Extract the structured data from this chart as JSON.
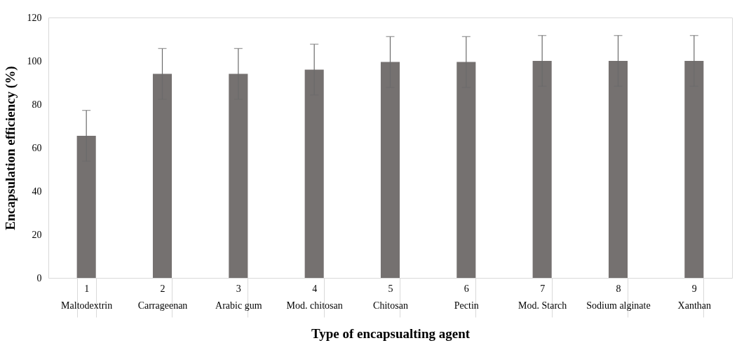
{
  "chart_data": {
    "type": "bar",
    "xlabel": "Type of encapsualting agent",
    "ylabel": "Encapsulation efficiency (%)",
    "categories": [
      "1\nMaltodextrin",
      "2\nCarrageenan",
      "3\nArabic gum",
      "4\nMod. chitosan",
      "5\nChitosan",
      "6\nPectin",
      "7\nMod. Starch",
      "8\nSodium alginate",
      "9\nXanthan"
    ],
    "values": [
      65.5,
      94,
      94,
      96,
      99.5,
      99.5,
      100,
      100,
      100
    ],
    "errors": [
      11.7,
      11.7,
      11.7,
      11.7,
      11.7,
      11.7,
      11.7,
      11.7,
      11.7
    ],
    "color": "#757170",
    "ylim": [
      0,
      120
    ],
    "yticks": [
      0,
      20,
      40,
      60,
      80,
      100,
      120
    ],
    "grid": false
  }
}
